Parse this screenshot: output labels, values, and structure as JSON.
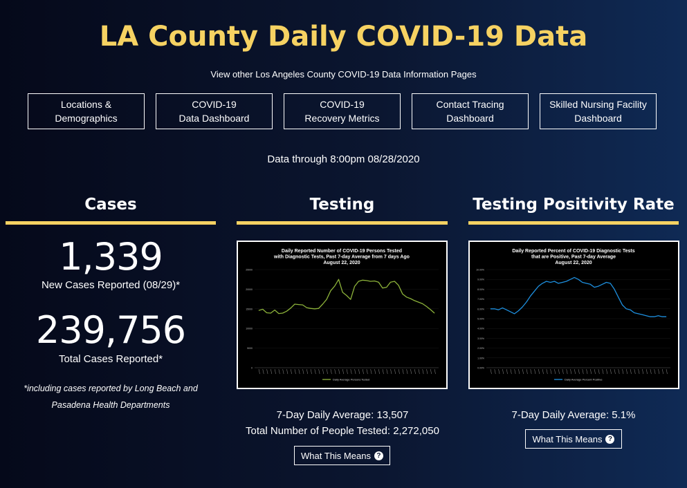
{
  "header": {
    "title": "LA County Daily COVID-19 Data",
    "subtitle": "View other Los Angeles County COVID-19 Data Information Pages"
  },
  "nav": [
    {
      "label": "Locations &\nDemographics"
    },
    {
      "label": "COVID-19\nData Dashboard"
    },
    {
      "label": "COVID-19\nRecovery Metrics"
    },
    {
      "label": "Contact Tracing\nDashboard"
    },
    {
      "label": "Skilled Nursing Facility\nDashboard"
    }
  ],
  "data_through": "Data through 8:00pm 08/28/2020",
  "cases": {
    "title": "Cases",
    "new_value": "1,339",
    "new_label": "New Cases Reported (08/29)*",
    "total_value": "239,756",
    "total_label": "Total Cases Reported*",
    "footnote": "*including cases reported by Long Beach and Pasadena Health Departments"
  },
  "testing": {
    "title": "Testing",
    "avg_label": "7-Day Daily Average: 13,507",
    "total_label": "Total Number of People Tested: 2,272,050",
    "button_label": "What This Means"
  },
  "positivity": {
    "title": "Testing Positivity Rate",
    "avg_label": "7-Day Daily Average: 5.1%",
    "button_label": "What This Means"
  },
  "chart_data": [
    {
      "type": "line",
      "title": "Daily Reported Number of COVID-19 Persons Tested with Diagnostic Tests, Past 7-day Average from 7 days Ago",
      "title_lines": [
        "Daily Reported Number of COVID-19 Persons Tested",
        "with Diagnostic Tests, Past 7-day Average from 7 days Ago",
        "August 22, 2020"
      ],
      "subtitle": "August 22, 2020",
      "ylim": [
        0,
        25000
      ],
      "yticks": [
        0,
        5000,
        10000,
        15000,
        20000,
        25000
      ],
      "ytick_labels": [
        "0",
        "5000",
        "10000",
        "15000",
        "20000",
        "25000"
      ],
      "legend": "top-center",
      "series": [
        {
          "name": "Daily Average Persons Tested",
          "color": "#8db33a",
          "values": [
            14600,
            14900,
            14000,
            13900,
            14700,
            13800,
            13900,
            14400,
            15200,
            16200,
            16100,
            16000,
            15300,
            15100,
            15000,
            15100,
            16200,
            17400,
            19600,
            20800,
            22500,
            19200,
            18400,
            17400,
            20700,
            22000,
            22300,
            22200,
            22000,
            22100,
            21800,
            20300,
            20500,
            21800,
            22000,
            21000,
            18800,
            18000,
            17600,
            17100,
            16700,
            16300,
            15600,
            14800,
            13900
          ]
        }
      ]
    },
    {
      "type": "line",
      "title": "Daily Reported Percent of COVID-19 Diagnostic Tests that are Positive, Past 7-day Average",
      "title_lines": [
        "Daily Reported Percent of COVID-19 Diagnostic Tests",
        "that are Positive, Past 7-day Average",
        "August 22, 2020"
      ],
      "subtitle": "August 22, 2020",
      "ylim": [
        0,
        10
      ],
      "yticks": [
        0,
        1,
        2,
        3,
        4,
        5,
        6,
        7,
        8,
        9,
        10
      ],
      "ytick_labels": [
        "0.00%",
        "1.00%",
        "2.00%",
        "3.00%",
        "4.00%",
        "5.00%",
        "6.00%",
        "7.00%",
        "8.00%",
        "9.00%",
        "10.00%"
      ],
      "legend": "bottom-center",
      "series": [
        {
          "name": "Daily Average Percent Positive",
          "color": "#1e90e0",
          "values": [
            6.0,
            6.0,
            5.9,
            6.1,
            5.9,
            5.7,
            5.5,
            5.8,
            6.2,
            6.7,
            7.3,
            7.8,
            8.3,
            8.6,
            8.8,
            8.7,
            8.8,
            8.6,
            8.7,
            8.8,
            9.0,
            9.2,
            9.0,
            8.7,
            8.6,
            8.5,
            8.2,
            8.3,
            8.5,
            8.7,
            8.6,
            8.0,
            7.2,
            6.4,
            6.0,
            5.9,
            5.6,
            5.5,
            5.4,
            5.3,
            5.2,
            5.2,
            5.3,
            5.2,
            5.2
          ]
        }
      ]
    }
  ]
}
